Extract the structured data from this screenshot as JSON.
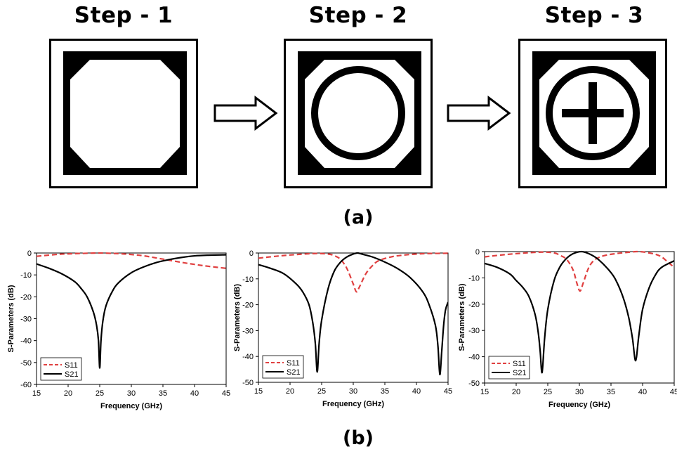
{
  "figure": {
    "steps": [
      {
        "label": "Step - 1"
      },
      {
        "label": "Step - 2"
      },
      {
        "label": "Step - 3"
      }
    ],
    "label_a": "(a)",
    "label_b": "(b)"
  },
  "colors": {
    "s11": "#e04040",
    "s21": "#000000"
  },
  "chart_data": [
    {
      "type": "line",
      "xlabel": "Frequency (GHz)",
      "ylabel": "S-Parameters (dB)",
      "xlim": [
        15,
        45
      ],
      "ylim": [
        -60,
        0
      ],
      "xticks": [
        15,
        20,
        25,
        30,
        35,
        40,
        45
      ],
      "yticks": [
        0,
        -10,
        -20,
        -30,
        -40,
        -50,
        -60
      ],
      "legend_position": "bottom-left",
      "series": [
        {
          "name": "S11",
          "style": "dashed",
          "x": [
            15,
            18,
            20,
            22,
            25,
            28,
            30,
            32,
            35,
            38,
            40,
            42,
            45
          ],
          "y": [
            -1.5,
            -0.7,
            -0.4,
            -0.2,
            0,
            -0.3,
            -0.7,
            -1.3,
            -2.8,
            -4.3,
            -5.2,
            -6.0,
            -7.0
          ]
        },
        {
          "name": "S21",
          "style": "solid",
          "x": [
            15,
            17,
            19,
            21,
            22,
            23,
            24,
            24.5,
            24.8,
            25.0,
            25.2,
            25.5,
            26,
            27,
            28,
            30,
            32,
            34,
            36,
            38,
            40,
            42,
            45
          ],
          "y": [
            -5,
            -7,
            -9.5,
            -13,
            -16,
            -20,
            -27,
            -33,
            -40,
            -52.5,
            -40,
            -31,
            -24,
            -17.5,
            -13.5,
            -9,
            -6.3,
            -4.3,
            -3,
            -2,
            -1.3,
            -1,
            -0.8
          ]
        }
      ]
    },
    {
      "type": "line",
      "xlabel": "Frequency (GHz)",
      "ylabel": "S-Parameters (dB)",
      "xlim": [
        15,
        45
      ],
      "ylim": [
        -50,
        0
      ],
      "xticks": [
        15,
        20,
        25,
        30,
        35,
        40,
        45
      ],
      "yticks": [
        0,
        -10,
        -20,
        -30,
        -40,
        -50
      ],
      "legend_position": "bottom-left",
      "series": [
        {
          "name": "S11",
          "style": "dashed",
          "x": [
            15,
            18,
            21,
            24,
            26,
            27,
            28,
            29,
            30,
            30.5,
            31,
            32,
            33,
            34,
            36,
            38,
            40,
            42,
            45
          ],
          "y": [
            -2,
            -1.2,
            -0.6,
            -0.2,
            -0.4,
            -1,
            -2.5,
            -6,
            -12,
            -15,
            -13,
            -8,
            -5,
            -3,
            -1.5,
            -0.8,
            -0.4,
            -0.2,
            -0.1
          ]
        },
        {
          "name": "S21",
          "style": "solid",
          "x": [
            15,
            17,
            19,
            21,
            22,
            23,
            23.6,
            24.0,
            24.3,
            24.6,
            25,
            26,
            27,
            28,
            29,
            30,
            30.7,
            31.5,
            33,
            35,
            37,
            39,
            41,
            42,
            43,
            43.4,
            43.7,
            44.0,
            44.3,
            44.6,
            45
          ],
          "y": [
            -4.5,
            -6,
            -8,
            -12,
            -15,
            -20,
            -27,
            -35,
            -46,
            -35,
            -26,
            -14,
            -7,
            -3.5,
            -1.5,
            -0.4,
            0,
            -0.5,
            -1.5,
            -3.5,
            -6,
            -9.5,
            -15,
            -20,
            -28,
            -36,
            -47,
            -38,
            -28,
            -22,
            -19
          ]
        }
      ]
    },
    {
      "type": "line",
      "xlabel": "Frequency (GHz)",
      "ylabel": "S-Parameters (dB)",
      "xlim": [
        15,
        45
      ],
      "ylim": [
        -50,
        0
      ],
      "xticks": [
        15,
        20,
        25,
        30,
        35,
        40,
        45
      ],
      "yticks": [
        0,
        -10,
        -20,
        -30,
        -40,
        -50
      ],
      "legend_position": "bottom-left",
      "series": [
        {
          "name": "S11",
          "style": "dashed",
          "x": [
            15,
            18,
            21,
            24,
            26,
            27,
            28,
            29,
            29.6,
            30.1,
            30.6,
            31.5,
            32.5,
            34,
            36,
            38,
            39,
            40,
            41,
            42,
            43,
            44,
            45
          ],
          "y": [
            -2,
            -1.2,
            -0.6,
            -0.2,
            -0.5,
            -1.5,
            -3,
            -7,
            -12,
            -15,
            -12,
            -6,
            -3,
            -1.5,
            -0.7,
            -0.2,
            0,
            -0.1,
            -0.5,
            -1,
            -2,
            -4,
            -6
          ]
        },
        {
          "name": "S21",
          "style": "solid",
          "x": [
            15,
            17,
            19,
            20,
            21,
            22,
            23,
            23.5,
            23.8,
            24.1,
            24.5,
            25,
            26,
            27,
            28,
            29,
            30.3,
            31.5,
            33,
            35,
            36,
            37,
            37.8,
            38.4,
            38.9,
            39.4,
            40,
            41,
            42,
            43,
            45
          ],
          "y": [
            -4.5,
            -6,
            -8.5,
            -11,
            -13.5,
            -17,
            -24,
            -31,
            -38,
            -46,
            -33,
            -22,
            -11,
            -5.5,
            -2.5,
            -0.8,
            0,
            -0.8,
            -3,
            -8,
            -12,
            -18,
            -25,
            -33,
            -41.5,
            -32,
            -22,
            -14,
            -9,
            -6,
            -3.5
          ]
        }
      ]
    }
  ]
}
